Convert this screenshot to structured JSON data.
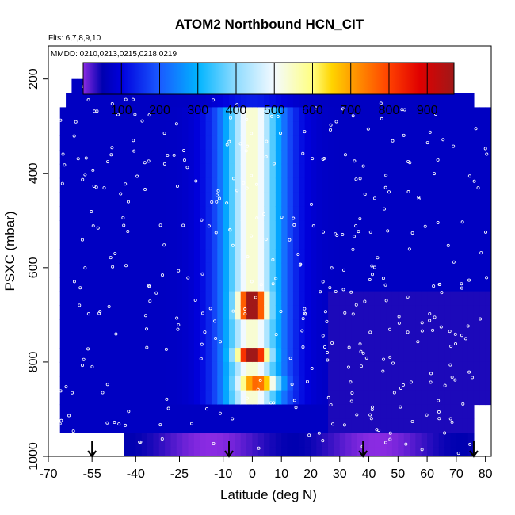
{
  "chart_data": {
    "type": "heatmap",
    "title": "ATOM2 Northbound HCN_CIT",
    "subtitle_flights": "Flts: 6,7,8,9,10",
    "subtitle_dates": "MMDD: 0210,0213,0215,0218,0219",
    "xlabel": "Latitude (deg N)",
    "ylabel": "PSXC (mbar)",
    "x_range": [
      -70,
      82
    ],
    "y_range": [
      1000,
      130
    ],
    "x_ticks": [
      "-70",
      "-55",
      "-40",
      "-25",
      "-10",
      "0",
      "10",
      "20",
      "30",
      "40",
      "50",
      "60",
      "70",
      "80"
    ],
    "x_tick_values": [
      -70,
      -55,
      -40,
      -25,
      -10,
      0,
      10,
      20,
      30,
      40,
      50,
      60,
      70,
      80
    ],
    "y_ticks": [
      "200",
      "400",
      "600",
      "800",
      "1000"
    ],
    "y_tick_values": [
      200,
      400,
      600,
      800,
      1000
    ],
    "colorbar": {
      "range": [
        0,
        970
      ],
      "ticks": [
        "100",
        "200",
        "300",
        "400",
        "500",
        "600",
        "700",
        "800",
        "900"
      ],
      "tick_values": [
        100,
        200,
        300,
        400,
        500,
        600,
        700,
        800,
        900
      ],
      "stops": [
        {
          "v": 0,
          "c": "#8a2be2"
        },
        {
          "v": 50,
          "c": "#0000b0"
        },
        {
          "v": 100,
          "c": "#0000dd"
        },
        {
          "v": 200,
          "c": "#1a5aff"
        },
        {
          "v": 300,
          "c": "#00b4ff"
        },
        {
          "v": 400,
          "c": "#90dcff"
        },
        {
          "v": 500,
          "c": "#f4faff"
        },
        {
          "v": 600,
          "c": "#ffff80"
        },
        {
          "v": 650,
          "c": "#ffd400"
        },
        {
          "v": 700,
          "c": "#ffa000"
        },
        {
          "v": 800,
          "c": "#ff4000"
        },
        {
          "v": 880,
          "c": "#e00000"
        },
        {
          "v": 970,
          "c": "#a01818"
        }
      ]
    },
    "arrows_latitude": [
      -55,
      -8,
      38,
      76
    ]
  }
}
